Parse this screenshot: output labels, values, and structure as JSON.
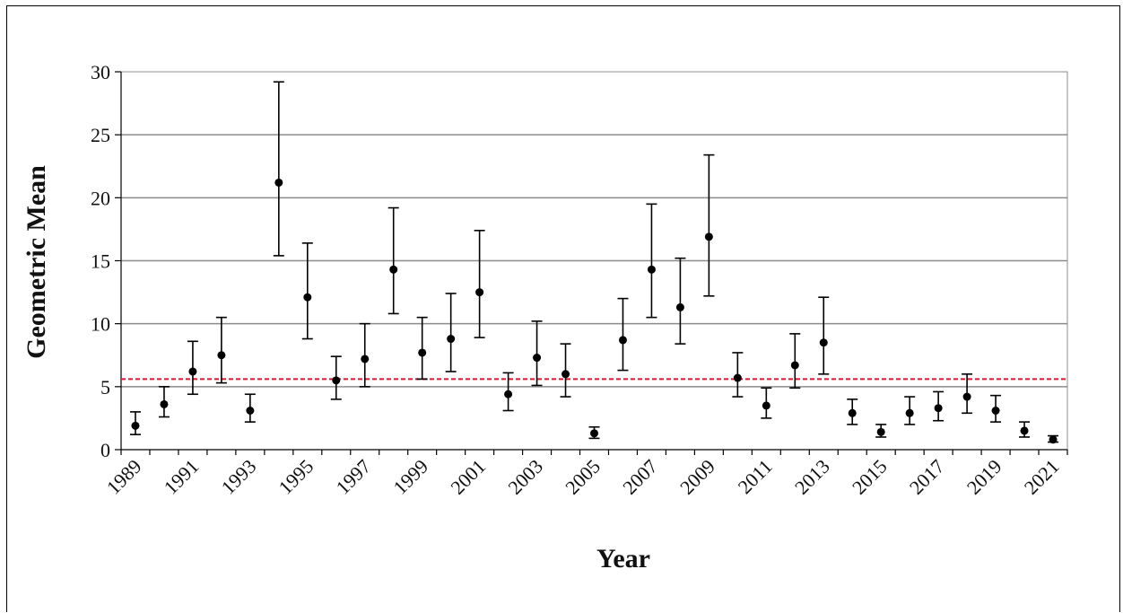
{
  "chart_data": {
    "type": "scatter",
    "title": "",
    "xlabel": "Year",
    "ylabel": "Geometric Mean",
    "ylim": [
      0,
      30
    ],
    "yticks": [
      0,
      5,
      10,
      15,
      20,
      25,
      30
    ],
    "xticks": [
      "1989",
      "1991",
      "1993",
      "1995",
      "1997",
      "1999",
      "2001",
      "2003",
      "2005",
      "2007",
      "2009",
      "2011",
      "2013",
      "2015",
      "2017",
      "2019",
      "2021"
    ],
    "grid": "horizontal",
    "reference_line": {
      "value": 5.6,
      "style": "dashed",
      "color": "#e8102b"
    },
    "marker_color": "#000000",
    "series": [
      {
        "points": [
          {
            "x": 1989,
            "y": 1.9,
            "low": 1.2,
            "high": 3.0
          },
          {
            "x": 1990,
            "y": 3.6,
            "low": 2.6,
            "high": 5.0
          },
          {
            "x": 1991,
            "y": 6.2,
            "low": 4.4,
            "high": 8.6
          },
          {
            "x": 1992,
            "y": 7.5,
            "low": 5.3,
            "high": 10.5
          },
          {
            "x": 1993,
            "y": 3.1,
            "low": 2.2,
            "high": 4.4
          },
          {
            "x": 1994,
            "y": 21.2,
            "low": 15.4,
            "high": 29.2
          },
          {
            "x": 1995,
            "y": 12.1,
            "low": 8.8,
            "high": 16.4
          },
          {
            "x": 1996,
            "y": 5.5,
            "low": 4.0,
            "high": 7.4
          },
          {
            "x": 1997,
            "y": 7.2,
            "low": 5.0,
            "high": 10.0
          },
          {
            "x": 1998,
            "y": 14.3,
            "low": 10.8,
            "high": 19.2
          },
          {
            "x": 1999,
            "y": 7.7,
            "low": 5.6,
            "high": 10.5
          },
          {
            "x": 2000,
            "y": 8.8,
            "low": 6.2,
            "high": 12.4
          },
          {
            "x": 2001,
            "y": 12.5,
            "low": 8.9,
            "high": 17.4
          },
          {
            "x": 2002,
            "y": 4.4,
            "low": 3.1,
            "high": 6.1
          },
          {
            "x": 2003,
            "y": 7.3,
            "low": 5.1,
            "high": 10.2
          },
          {
            "x": 2004,
            "y": 6.0,
            "low": 4.2,
            "high": 8.4
          },
          {
            "x": 2005,
            "y": 1.3,
            "low": 0.9,
            "high": 1.8
          },
          {
            "x": 2006,
            "y": 8.7,
            "low": 6.3,
            "high": 12.0
          },
          {
            "x": 2007,
            "y": 14.3,
            "low": 10.5,
            "high": 19.5
          },
          {
            "x": 2008,
            "y": 11.3,
            "low": 8.4,
            "high": 15.2
          },
          {
            "x": 2009,
            "y": 16.9,
            "low": 12.2,
            "high": 23.4
          },
          {
            "x": 2010,
            "y": 5.7,
            "low": 4.2,
            "high": 7.7
          },
          {
            "x": 2011,
            "y": 3.5,
            "low": 2.5,
            "high": 4.9
          },
          {
            "x": 2012,
            "y": 6.7,
            "low": 4.9,
            "high": 9.2
          },
          {
            "x": 2013,
            "y": 8.5,
            "low": 6.0,
            "high": 12.1
          },
          {
            "x": 2014,
            "y": 2.9,
            "low": 2.0,
            "high": 4.0
          },
          {
            "x": 2015,
            "y": 1.4,
            "low": 1.0,
            "high": 2.0
          },
          {
            "x": 2016,
            "y": 2.9,
            "low": 2.0,
            "high": 4.2
          },
          {
            "x": 2017,
            "y": 3.3,
            "low": 2.3,
            "high": 4.6
          },
          {
            "x": 2018,
            "y": 4.2,
            "low": 2.9,
            "high": 6.0
          },
          {
            "x": 2019,
            "y": 3.1,
            "low": 2.2,
            "high": 4.3
          },
          {
            "x": 2020,
            "y": 1.5,
            "low": 1.0,
            "high": 2.2
          },
          {
            "x": 2021,
            "y": 0.8,
            "low": 0.6,
            "high": 1.1
          }
        ]
      }
    ]
  }
}
